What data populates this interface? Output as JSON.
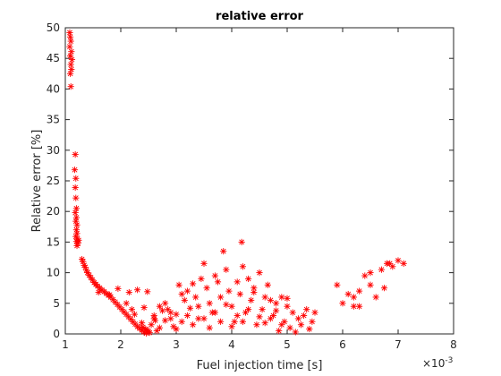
{
  "chart_data": {
    "type": "scatter",
    "title": "relative error",
    "xlabel": "Fuel injection time [s]",
    "ylabel": "Relative error [%]",
    "x_exponent_label": "×10",
    "x_exponent": "-3",
    "xlim": [
      1,
      8
    ],
    "ylim": [
      0,
      50
    ],
    "xticks": [
      "1",
      "2",
      "3",
      "4",
      "5",
      "6",
      "7",
      "8"
    ],
    "yticks": [
      "0",
      "5",
      "10",
      "15",
      "20",
      "25",
      "30",
      "35",
      "40",
      "45",
      "50"
    ],
    "grid": false,
    "legend": "none",
    "marker": "asterisk",
    "marker_color": "#ff0000",
    "series": [
      {
        "points": [
          [
            1.08,
            49.2
          ],
          [
            1.09,
            48.5
          ],
          [
            1.1,
            47.8
          ],
          [
            1.08,
            46.9
          ],
          [
            1.11,
            46.1
          ],
          [
            1.09,
            45.4
          ],
          [
            1.12,
            44.8
          ],
          [
            1.1,
            44.0
          ],
          [
            1.11,
            43.2
          ],
          [
            1.09,
            42.5
          ],
          [
            1.1,
            40.4
          ],
          [
            1.18,
            29.3
          ],
          [
            1.17,
            26.8
          ],
          [
            1.19,
            25.4
          ],
          [
            1.18,
            23.9
          ],
          [
            1.19,
            22.2
          ],
          [
            1.2,
            20.5
          ],
          [
            1.18,
            19.8
          ],
          [
            1.2,
            19.0
          ],
          [
            1.19,
            18.4
          ],
          [
            1.21,
            17.8
          ],
          [
            1.2,
            17.0
          ],
          [
            1.21,
            16.4
          ],
          [
            1.19,
            15.9
          ],
          [
            1.22,
            15.5
          ],
          [
            1.2,
            15.1
          ],
          [
            1.23,
            14.8
          ],
          [
            1.21,
            14.4
          ],
          [
            1.24,
            15.3
          ],
          [
            1.3,
            12.2
          ],
          [
            1.32,
            11.8
          ],
          [
            1.34,
            11.2
          ],
          [
            1.36,
            10.9
          ],
          [
            1.38,
            10.4
          ],
          [
            1.4,
            10.0
          ],
          [
            1.43,
            9.6
          ],
          [
            1.46,
            9.2
          ],
          [
            1.49,
            8.8
          ],
          [
            1.52,
            8.4
          ],
          [
            1.55,
            8.1
          ],
          [
            1.58,
            7.8
          ],
          [
            1.62,
            7.5
          ],
          [
            1.66,
            7.2
          ],
          [
            1.7,
            6.9
          ],
          [
            1.74,
            6.6
          ],
          [
            1.78,
            6.3
          ],
          [
            1.82,
            6.0
          ],
          [
            1.86,
            5.6
          ],
          [
            1.9,
            5.2
          ],
          [
            1.94,
            4.8
          ],
          [
            1.98,
            4.4
          ],
          [
            2.02,
            4.0
          ],
          [
            2.06,
            3.6
          ],
          [
            2.1,
            3.2
          ],
          [
            2.14,
            2.8
          ],
          [
            2.18,
            2.4
          ],
          [
            2.22,
            2.0
          ],
          [
            2.26,
            1.6
          ],
          [
            2.3,
            1.2
          ],
          [
            2.34,
            0.9
          ],
          [
            2.38,
            0.6
          ],
          [
            2.42,
            0.3
          ],
          [
            2.46,
            0.1
          ],
          [
            2.5,
            0.4
          ],
          [
            2.45,
            0.8
          ],
          [
            2.4,
            1.1
          ],
          [
            2.52,
            0.2
          ],
          [
            2.48,
            0.6
          ],
          [
            1.6,
            6.8
          ],
          [
            1.8,
            6.4
          ],
          [
            1.95,
            7.4
          ],
          [
            2.1,
            5.0
          ],
          [
            2.2,
            4.0
          ],
          [
            2.15,
            6.8
          ],
          [
            2.3,
            7.2
          ],
          [
            2.25,
            3.2
          ],
          [
            2.38,
            1.8
          ],
          [
            2.42,
            4.3
          ],
          [
            2.48,
            6.9
          ],
          [
            2.55,
            1.5
          ],
          [
            2.6,
            3.0
          ],
          [
            2.62,
            2.2
          ],
          [
            2.65,
            0.5
          ],
          [
            2.7,
            4.5
          ],
          [
            2.75,
            3.8
          ],
          [
            2.8,
            5.0
          ],
          [
            2.85,
            4.0
          ],
          [
            2.9,
            2.5
          ],
          [
            2.95,
            1.2
          ],
          [
            3.0,
            3.2
          ],
          [
            3.05,
            8.0
          ],
          [
            3.1,
            6.5
          ],
          [
            3.15,
            5.5
          ],
          [
            3.2,
            7.0
          ],
          [
            3.25,
            4.2
          ],
          [
            3.3,
            8.2
          ],
          [
            3.35,
            6.0
          ],
          [
            3.4,
            2.5
          ],
          [
            3.45,
            9.0
          ],
          [
            3.5,
            11.5
          ],
          [
            3.55,
            7.5
          ],
          [
            3.6,
            5.0
          ],
          [
            3.65,
            3.5
          ],
          [
            3.7,
            9.5
          ],
          [
            3.75,
            8.5
          ],
          [
            3.8,
            6.0
          ],
          [
            3.85,
            13.5
          ],
          [
            3.9,
            10.5
          ],
          [
            3.95,
            7.0
          ],
          [
            4.0,
            4.5
          ],
          [
            4.05,
            2.0
          ],
          [
            4.1,
            8.5
          ],
          [
            4.15,
            6.5
          ],
          [
            4.18,
            15.0
          ],
          [
            4.2,
            11.0
          ],
          [
            4.25,
            3.5
          ],
          [
            4.3,
            9.0
          ],
          [
            4.35,
            5.5
          ],
          [
            4.4,
            7.5
          ],
          [
            4.45,
            1.5
          ],
          [
            4.5,
            10.0
          ],
          [
            4.55,
            4.0
          ],
          [
            4.6,
            6.0
          ],
          [
            4.65,
            8.0
          ],
          [
            4.7,
            2.5
          ],
          [
            4.75,
            3.0
          ],
          [
            4.8,
            5.0
          ],
          [
            4.85,
            0.5
          ],
          [
            4.9,
            6.0
          ],
          [
            4.95,
            2.0
          ],
          [
            5.0,
            4.5
          ],
          [
            5.05,
            1.0
          ],
          [
            5.1,
            3.5
          ],
          [
            5.15,
            0.3
          ],
          [
            5.2,
            2.5
          ],
          [
            5.25,
            1.5
          ],
          [
            5.3,
            3.0
          ],
          [
            5.35,
            4.0
          ],
          [
            5.4,
            0.8
          ],
          [
            5.45,
            2.0
          ],
          [
            5.5,
            3.5
          ],
          [
            2.6,
            2.5
          ],
          [
            2.7,
            1.0
          ],
          [
            2.8,
            2.2
          ],
          [
            2.9,
            3.5
          ],
          [
            3.0,
            0.8
          ],
          [
            3.1,
            2.0
          ],
          [
            3.2,
            3.0
          ],
          [
            3.3,
            1.5
          ],
          [
            3.4,
            4.5
          ],
          [
            3.5,
            2.5
          ],
          [
            3.6,
            1.0
          ],
          [
            3.7,
            3.5
          ],
          [
            3.8,
            2.0
          ],
          [
            3.9,
            4.8
          ],
          [
            4.0,
            1.2
          ],
          [
            4.1,
            3.0
          ],
          [
            4.2,
            2.0
          ],
          [
            4.3,
            4.0
          ],
          [
            4.4,
            6.8
          ],
          [
            4.5,
            2.8
          ],
          [
            4.6,
            1.8
          ],
          [
            4.7,
            5.5
          ],
          [
            4.8,
            3.8
          ],
          [
            4.9,
            1.5
          ],
          [
            5.0,
            5.8
          ],
          [
            5.9,
            8.0
          ],
          [
            6.0,
            5.0
          ],
          [
            6.1,
            6.5
          ],
          [
            6.2,
            4.5
          ],
          [
            6.3,
            7.0
          ],
          [
            6.4,
            9.5
          ],
          [
            6.5,
            8.0
          ],
          [
            6.6,
            6.0
          ],
          [
            6.7,
            10.5
          ],
          [
            6.75,
            7.5
          ],
          [
            6.8,
            11.5
          ],
          [
            6.9,
            11.0
          ],
          [
            7.0,
            12.0
          ],
          [
            7.1,
            11.5
          ],
          [
            6.5,
            10.0
          ],
          [
            6.3,
            4.5
          ],
          [
            6.2,
            6.0
          ],
          [
            6.85,
            11.5
          ]
        ]
      }
    ]
  }
}
